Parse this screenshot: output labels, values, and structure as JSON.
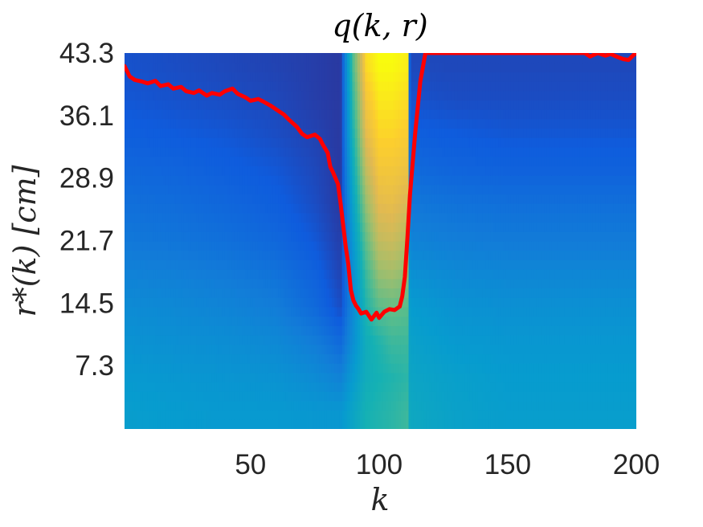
{
  "chart_data": {
    "type": "heatmap",
    "title": "q(k, r)",
    "xlabel": "k",
    "ylabel": "r*(k) [cm]",
    "xlim": [
      1,
      200
    ],
    "ylim": [
      0,
      43.3
    ],
    "x_ticks": [
      "50",
      "100",
      "150",
      "200"
    ],
    "x_tick_values": [
      50,
      100,
      150,
      200
    ],
    "y_ticks": [
      "7.3",
      "14.5",
      "21.7",
      "28.9",
      "36.1",
      "43.3"
    ],
    "y_tick_values": [
      7.3,
      14.5,
      21.7,
      28.9,
      36.1,
      43.3
    ],
    "colormap": "parula",
    "heatmap_description_values": {
      "k": [
        1,
        20,
        40,
        60,
        75,
        85,
        90,
        95,
        100,
        105,
        111,
        112,
        130,
        150,
        175,
        200
      ],
      "r_levels": [
        2,
        6,
        10,
        14,
        18,
        22,
        26,
        30,
        34,
        38,
        42
      ],
      "q": [
        [
          0.36,
          0.35,
          0.34,
          0.34,
          0.33,
          0.33,
          0.4,
          0.48,
          0.5,
          0.52,
          0.55,
          0.42,
          0.38,
          0.36,
          0.36,
          0.36
        ],
        [
          0.34,
          0.33,
          0.32,
          0.31,
          0.28,
          0.24,
          0.35,
          0.45,
          0.48,
          0.5,
          0.52,
          0.4,
          0.37,
          0.35,
          0.35,
          0.35
        ],
        [
          0.31,
          0.3,
          0.29,
          0.27,
          0.22,
          0.15,
          0.3,
          0.45,
          0.5,
          0.55,
          0.55,
          0.38,
          0.34,
          0.33,
          0.33,
          0.33
        ],
        [
          0.28,
          0.27,
          0.25,
          0.22,
          0.15,
          0.07,
          0.28,
          0.5,
          0.6,
          0.62,
          0.6,
          0.35,
          0.31,
          0.3,
          0.3,
          0.3
        ],
        [
          0.24,
          0.23,
          0.21,
          0.18,
          0.12,
          0.05,
          0.3,
          0.55,
          0.7,
          0.72,
          0.68,
          0.3,
          0.27,
          0.26,
          0.26,
          0.26
        ],
        [
          0.2,
          0.19,
          0.17,
          0.14,
          0.09,
          0.04,
          0.35,
          0.62,
          0.78,
          0.8,
          0.75,
          0.24,
          0.22,
          0.21,
          0.21,
          0.21
        ],
        [
          0.17,
          0.16,
          0.14,
          0.11,
          0.07,
          0.03,
          0.4,
          0.7,
          0.85,
          0.86,
          0.82,
          0.2,
          0.18,
          0.17,
          0.17,
          0.17
        ],
        [
          0.14,
          0.13,
          0.11,
          0.09,
          0.06,
          0.03,
          0.45,
          0.78,
          0.9,
          0.9,
          0.88,
          0.15,
          0.13,
          0.12,
          0.12,
          0.12
        ],
        [
          0.11,
          0.1,
          0.09,
          0.07,
          0.05,
          0.03,
          0.5,
          0.85,
          0.94,
          0.94,
          0.92,
          0.11,
          0.1,
          0.09,
          0.09,
          0.09
        ],
        [
          0.09,
          0.08,
          0.07,
          0.06,
          0.04,
          0.03,
          0.55,
          0.9,
          0.97,
          0.97,
          0.95,
          0.08,
          0.07,
          0.07,
          0.07,
          0.07
        ],
        [
          0.08,
          0.07,
          0.06,
          0.05,
          0.04,
          0.03,
          0.6,
          0.95,
          1.0,
          1.0,
          0.98,
          0.06,
          0.06,
          0.06,
          0.06,
          0.06
        ]
      ]
    },
    "series": [
      {
        "name": "r*(k)",
        "color": "#ff0000",
        "x": [
          1,
          3,
          5,
          8,
          10,
          13,
          15,
          18,
          20,
          23,
          25,
          28,
          30,
          33,
          35,
          38,
          40,
          43,
          45,
          48,
          50,
          53,
          55,
          58,
          60,
          63,
          65,
          68,
          70,
          72,
          75,
          77,
          78,
          80,
          81,
          82,
          84,
          85,
          86,
          87,
          88,
          89,
          90,
          91,
          92,
          93,
          95,
          97,
          99,
          100,
          102,
          104,
          106,
          108,
          109,
          110,
          111,
          112,
          114,
          116,
          118,
          120,
          125,
          130,
          140,
          150,
          160,
          170,
          180,
          182,
          185,
          188,
          190,
          193,
          195,
          197,
          198,
          199,
          200
        ],
        "y": [
          41.8,
          40.6,
          40.2,
          40.0,
          39.8,
          40.1,
          39.5,
          39.7,
          39.2,
          39.4,
          38.9,
          38.7,
          39.0,
          38.4,
          38.7,
          38.5,
          38.9,
          39.2,
          38.6,
          38.2,
          37.8,
          38.0,
          37.7,
          37.2,
          36.8,
          36.2,
          35.6,
          34.8,
          34.0,
          33.6,
          33.9,
          33.4,
          32.8,
          31.8,
          30.2,
          29.6,
          28.2,
          26.0,
          23.5,
          21.0,
          19.0,
          16.0,
          14.8,
          14.2,
          13.8,
          13.3,
          13.5,
          12.6,
          13.4,
          12.8,
          13.5,
          13.8,
          13.7,
          14.1,
          15.3,
          17.5,
          22.0,
          27.0,
          34.0,
          40.0,
          43.3,
          43.3,
          43.3,
          43.3,
          43.3,
          43.3,
          43.3,
          43.3,
          43.3,
          42.9,
          43.3,
          43.0,
          43.2,
          42.8,
          42.6,
          42.5,
          42.8,
          43.1,
          43.3
        ]
      }
    ]
  }
}
